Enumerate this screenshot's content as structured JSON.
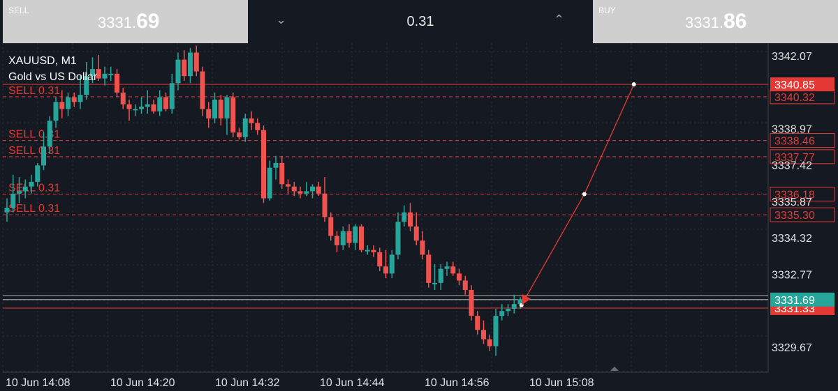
{
  "trade_bar": {
    "sell": {
      "label": "SELL",
      "price_main": "3331.",
      "price_big": "69"
    },
    "buy": {
      "label": "BUY",
      "price_main": "3331.",
      "price_big": "86"
    },
    "volume": "0.31"
  },
  "chart_data": {
    "type": "candlestick",
    "symbol": "XAUUSD, M1",
    "description": "Gold vs US Dollar",
    "ylim": [
      3328.6,
      3342.6
    ],
    "y_ticks": [
      "3342.07",
      "3338.97",
      "3337.42",
      "3335.87",
      "3334.32",
      "3332.77",
      "3329.67"
    ],
    "x_ticks": [
      "10 Jun 14:08",
      "10 Jun 14:20",
      "10 Jun 14:32",
      "10 Jun 14:44",
      "10 Jun 14:56",
      "10 Jun 15:08"
    ],
    "candles": [
      {
        "o": 3335.4,
        "h": 3336.0,
        "l": 3335.0,
        "c": 3335.6
      },
      {
        "o": 3335.6,
        "h": 3337.0,
        "l": 3335.4,
        "c": 3336.2
      },
      {
        "o": 3336.2,
        "h": 3336.9,
        "l": 3335.8,
        "c": 3336.3
      },
      {
        "o": 3336.3,
        "h": 3336.8,
        "l": 3336.0,
        "c": 3336.5
      },
      {
        "o": 3336.5,
        "h": 3337.0,
        "l": 3336.2,
        "c": 3336.7
      },
      {
        "o": 3336.7,
        "h": 3337.5,
        "l": 3336.5,
        "c": 3337.4
      },
      {
        "o": 3337.4,
        "h": 3338.8,
        "l": 3337.2,
        "c": 3338.2
      },
      {
        "o": 3338.2,
        "h": 3339.5,
        "l": 3337.9,
        "c": 3339.3
      },
      {
        "o": 3339.3,
        "h": 3340.3,
        "l": 3339.0,
        "c": 3340.1
      },
      {
        "o": 3340.1,
        "h": 3340.6,
        "l": 3339.4,
        "c": 3339.8
      },
      {
        "o": 3339.8,
        "h": 3340.5,
        "l": 3339.5,
        "c": 3340.3
      },
      {
        "o": 3340.3,
        "h": 3340.5,
        "l": 3339.9,
        "c": 3340.1
      },
      {
        "o": 3340.1,
        "h": 3341.2,
        "l": 3339.8,
        "c": 3340.4
      },
      {
        "o": 3340.4,
        "h": 3341.8,
        "l": 3340.2,
        "c": 3341.2
      },
      {
        "o": 3341.2,
        "h": 3342.0,
        "l": 3340.9,
        "c": 3341.5
      },
      {
        "o": 3341.5,
        "h": 3342.1,
        "l": 3341.0,
        "c": 3341.1
      },
      {
        "o": 3341.1,
        "h": 3341.6,
        "l": 3340.8,
        "c": 3341.3
      },
      {
        "o": 3341.3,
        "h": 3341.6,
        "l": 3341.0,
        "c": 3341.3
      },
      {
        "o": 3341.3,
        "h": 3341.5,
        "l": 3340.3,
        "c": 3340.5
      },
      {
        "o": 3340.5,
        "h": 3340.7,
        "l": 3339.8,
        "c": 3340.0
      },
      {
        "o": 3340.0,
        "h": 3340.2,
        "l": 3339.3,
        "c": 3339.8
      },
      {
        "o": 3339.8,
        "h": 3340.0,
        "l": 3339.5,
        "c": 3339.8
      },
      {
        "o": 3339.8,
        "h": 3340.3,
        "l": 3339.6,
        "c": 3339.9
      },
      {
        "o": 3339.9,
        "h": 3340.6,
        "l": 3339.6,
        "c": 3340.0
      },
      {
        "o": 3340.0,
        "h": 3340.2,
        "l": 3339.6,
        "c": 3339.7
      },
      {
        "o": 3339.7,
        "h": 3340.6,
        "l": 3339.5,
        "c": 3340.3
      },
      {
        "o": 3340.3,
        "h": 3340.5,
        "l": 3339.7,
        "c": 3339.8
      },
      {
        "o": 3339.8,
        "h": 3341.3,
        "l": 3339.6,
        "c": 3340.9
      },
      {
        "o": 3340.9,
        "h": 3342.2,
        "l": 3340.6,
        "c": 3341.9
      },
      {
        "o": 3341.9,
        "h": 3342.3,
        "l": 3341.0,
        "c": 3341.2
      },
      {
        "o": 3341.2,
        "h": 3342.4,
        "l": 3340.9,
        "c": 3342.2
      },
      {
        "o": 3342.2,
        "h": 3342.5,
        "l": 3341.2,
        "c": 3341.4
      },
      {
        "o": 3341.4,
        "h": 3341.6,
        "l": 3339.5,
        "c": 3339.8
      },
      {
        "o": 3339.8,
        "h": 3340.1,
        "l": 3339.0,
        "c": 3339.4
      },
      {
        "o": 3339.4,
        "h": 3340.5,
        "l": 3339.2,
        "c": 3340.2
      },
      {
        "o": 3340.2,
        "h": 3340.4,
        "l": 3339.1,
        "c": 3339.4
      },
      {
        "o": 3339.4,
        "h": 3340.4,
        "l": 3338.7,
        "c": 3340.3
      },
      {
        "o": 3340.3,
        "h": 3340.5,
        "l": 3338.6,
        "c": 3338.8
      },
      {
        "o": 3338.8,
        "h": 3339.0,
        "l": 3338.5,
        "c": 3338.6
      },
      {
        "o": 3338.6,
        "h": 3339.6,
        "l": 3338.4,
        "c": 3339.4
      },
      {
        "o": 3339.4,
        "h": 3339.7,
        "l": 3338.9,
        "c": 3339.2
      },
      {
        "o": 3339.2,
        "h": 3339.4,
        "l": 3338.7,
        "c": 3338.9
      },
      {
        "o": 3338.9,
        "h": 3339.1,
        "l": 3335.8,
        "c": 3336.0
      },
      {
        "o": 3336.0,
        "h": 3337.6,
        "l": 3335.9,
        "c": 3337.3
      },
      {
        "o": 3337.3,
        "h": 3337.8,
        "l": 3336.8,
        "c": 3337.5
      },
      {
        "o": 3337.5,
        "h": 3337.8,
        "l": 3336.4,
        "c": 3336.6
      },
      {
        "o": 3336.6,
        "h": 3336.8,
        "l": 3336.2,
        "c": 3336.5
      },
      {
        "o": 3336.5,
        "h": 3336.7,
        "l": 3336.1,
        "c": 3336.3
      },
      {
        "o": 3336.3,
        "h": 3336.5,
        "l": 3336.0,
        "c": 3336.2
      },
      {
        "o": 3336.2,
        "h": 3336.7,
        "l": 3336.1,
        "c": 3336.3
      },
      {
        "o": 3336.3,
        "h": 3336.6,
        "l": 3336.0,
        "c": 3336.5
      },
      {
        "o": 3336.5,
        "h": 3336.7,
        "l": 3336.1,
        "c": 3336.2
      },
      {
        "o": 3336.2,
        "h": 3336.9,
        "l": 3335.0,
        "c": 3335.2
      },
      {
        "o": 3335.2,
        "h": 3335.4,
        "l": 3334.2,
        "c": 3334.4
      },
      {
        "o": 3334.4,
        "h": 3334.6,
        "l": 3333.7,
        "c": 3334.0
      },
      {
        "o": 3334.0,
        "h": 3334.8,
        "l": 3333.8,
        "c": 3334.6
      },
      {
        "o": 3334.6,
        "h": 3334.9,
        "l": 3333.9,
        "c": 3334.1
      },
      {
        "o": 3334.1,
        "h": 3334.9,
        "l": 3333.8,
        "c": 3334.8
      },
      {
        "o": 3334.8,
        "h": 3334.9,
        "l": 3333.7,
        "c": 3333.8
      },
      {
        "o": 3333.8,
        "h": 3334.0,
        "l": 3333.6,
        "c": 3333.8
      },
      {
        "o": 3333.8,
        "h": 3334.0,
        "l": 3333.5,
        "c": 3333.7
      },
      {
        "o": 3333.7,
        "h": 3333.9,
        "l": 3332.9,
        "c": 3333.1
      },
      {
        "o": 3333.1,
        "h": 3333.8,
        "l": 3332.6,
        "c": 3332.8
      },
      {
        "o": 3332.8,
        "h": 3333.8,
        "l": 3332.6,
        "c": 3333.6
      },
      {
        "o": 3333.6,
        "h": 3335.4,
        "l": 3333.4,
        "c": 3335.0
      },
      {
        "o": 3335.0,
        "h": 3335.7,
        "l": 3334.8,
        "c": 3335.4
      },
      {
        "o": 3335.4,
        "h": 3335.8,
        "l": 3334.6,
        "c": 3334.8
      },
      {
        "o": 3334.8,
        "h": 3335.4,
        "l": 3334.0,
        "c": 3334.2
      },
      {
        "o": 3334.2,
        "h": 3334.6,
        "l": 3333.4,
        "c": 3333.6
      },
      {
        "o": 3333.6,
        "h": 3333.8,
        "l": 3332.2,
        "c": 3332.4
      },
      {
        "o": 3332.4,
        "h": 3333.2,
        "l": 3332.1,
        "c": 3332.4
      },
      {
        "o": 3332.4,
        "h": 3333.2,
        "l": 3332.1,
        "c": 3333.0
      },
      {
        "o": 3333.0,
        "h": 3333.3,
        "l": 3332.7,
        "c": 3333.1
      },
      {
        "o": 3333.1,
        "h": 3333.3,
        "l": 3332.7,
        "c": 3332.8
      },
      {
        "o": 3332.8,
        "h": 3333.0,
        "l": 3332.3,
        "c": 3332.5
      },
      {
        "o": 3332.5,
        "h": 3332.7,
        "l": 3331.9,
        "c": 3332.1
      },
      {
        "o": 3332.1,
        "h": 3332.3,
        "l": 3330.8,
        "c": 3331.0
      },
      {
        "o": 3331.0,
        "h": 3331.2,
        "l": 3330.2,
        "c": 3330.4
      },
      {
        "o": 3330.4,
        "h": 3330.8,
        "l": 3329.8,
        "c": 3330.0
      },
      {
        "o": 3330.0,
        "h": 3330.2,
        "l": 3329.5,
        "c": 3329.7
      },
      {
        "o": 3329.7,
        "h": 3331.3,
        "l": 3329.3,
        "c": 3331.0
      },
      {
        "o": 3331.0,
        "h": 3331.5,
        "l": 3330.8,
        "c": 3331.2
      },
      {
        "o": 3331.2,
        "h": 3331.5,
        "l": 3331.0,
        "c": 3331.3
      },
      {
        "o": 3331.3,
        "h": 3331.9,
        "l": 3331.1,
        "c": 3331.5
      },
      {
        "o": 3331.5,
        "h": 3331.8,
        "l": 3331.3,
        "c": 3331.7
      }
    ],
    "order_lines": [
      {
        "label": "SELL 0.31",
        "price_label": "3340.32",
        "price": 3340.32
      },
      {
        "label": "SELL 0.31",
        "price_label": "3338.46",
        "price": 3338.46
      },
      {
        "label": "SELL 0.31",
        "price_label": "3337.77",
        "price": 3337.77
      },
      {
        "label": "SELL 0.31",
        "price_label": "3336.18",
        "price": 3336.18
      },
      {
        "label": "SELL 0.31",
        "price_label": "3335.30",
        "price": 3335.3
      }
    ],
    "solid_lines": [
      {
        "price_label": "3340.85",
        "price": 3340.85
      },
      {
        "price_label": "3331.33",
        "price": 3331.33
      }
    ],
    "bid_line": {
      "price_label": "3331.69",
      "price": 3331.69
    },
    "ask_line": {
      "price": 3331.86
    },
    "trend_points": [
      {
        "index": 84.2,
        "price": 3331.45
      },
      {
        "index": 94.5,
        "price": 3336.18
      },
      {
        "index": 102.6,
        "price": 3340.85
      }
    ],
    "colors": {
      "bull": "#26a69a",
      "bear": "#ef5350",
      "line": "#e53935",
      "grid": "#2a2f3a",
      "text": "#e0e0e0",
      "bid": "#26a69a"
    }
  }
}
